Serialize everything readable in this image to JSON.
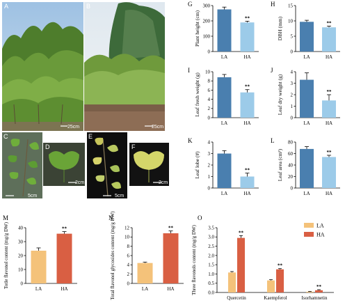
{
  "photos": [
    {
      "id": "photo-a",
      "letter": "A",
      "scale": "25cm",
      "scene": "dense-shrubs"
    },
    {
      "id": "photo-b",
      "letter": "B",
      "scale": "25cm",
      "scene": "shrubs-with-pine"
    },
    {
      "id": "photo-c",
      "letter": "C",
      "scale": "5cm",
      "scene": "leaf-branch-dark"
    },
    {
      "id": "photo-d",
      "letter": "D",
      "scale": "2cm",
      "scene": "single-leaf-dark"
    },
    {
      "id": "photo-e",
      "letter": "E",
      "scale": "5cm",
      "scene": "leaf-branch-black"
    },
    {
      "id": "photo-f",
      "letter": "F",
      "scale": "2cm",
      "scene": "single-leaf-black"
    }
  ],
  "colors": {
    "la_blue": "#4a7faf",
    "ha_lightblue": "#9ccbe9",
    "la_orange": "#f4c27a",
    "ha_red": "#d95f43",
    "sig": "#000000"
  },
  "chart_data": [
    {
      "id": "G",
      "type": "bar",
      "ylabel": "Plant height (cm)",
      "categories": [
        "LA",
        "HA"
      ],
      "values": [
        275,
        190
      ],
      "errors": [
        15,
        8
      ],
      "ylim": [
        0,
        300
      ],
      "yticks": [
        0,
        100,
        200,
        300
      ],
      "sig": [
        "",
        "**"
      ],
      "colors": [
        "#4a7faf",
        "#9ccbe9"
      ]
    },
    {
      "id": "H",
      "type": "bar",
      "ylabel": "DBH (mm)",
      "categories": [
        "LA",
        "HA"
      ],
      "values": [
        9.7,
        7.9
      ],
      "errors": [
        0.5,
        0.4
      ],
      "ylim": [
        0,
        15
      ],
      "yticks": [
        0,
        5,
        10,
        15
      ],
      "sig": [
        "",
        "**"
      ],
      "colors": [
        "#4a7faf",
        "#9ccbe9"
      ]
    },
    {
      "id": "I",
      "type": "bar",
      "ylabel": "Leaf fresh weight (g)",
      "categories": [
        "LA",
        "HA"
      ],
      "values": [
        8.8,
        5.5
      ],
      "errors": [
        0.6,
        0.6
      ],
      "ylim": [
        0,
        10
      ],
      "yticks": [
        0,
        2,
        4,
        6,
        8,
        10
      ],
      "sig": [
        "",
        "**"
      ],
      "colors": [
        "#4a7faf",
        "#9ccbe9"
      ]
    },
    {
      "id": "J",
      "type": "bar",
      "ylabel": "Leaf dry weight (g)",
      "categories": [
        "LA",
        "HA"
      ],
      "values": [
        3.3,
        1.5
      ],
      "errors": [
        0.6,
        0.5
      ],
      "ylim": [
        0,
        4
      ],
      "yticks": [
        0,
        1,
        2,
        3,
        4
      ],
      "sig": [
        "",
        "**"
      ],
      "colors": [
        "#4a7faf",
        "#9ccbe9"
      ]
    },
    {
      "id": "K",
      "type": "bar",
      "ylabel": "Leaf lobe (#)",
      "categories": [
        "LA",
        "HA"
      ],
      "values": [
        3.0,
        1.0
      ],
      "errors": [
        0.25,
        0.3
      ],
      "ylim": [
        0,
        4
      ],
      "yticks": [
        0,
        1,
        2,
        3,
        4
      ],
      "sig": [
        "",
        "**"
      ],
      "colors": [
        "#4a7faf",
        "#9ccbe9"
      ]
    },
    {
      "id": "L",
      "type": "bar",
      "ylabel": "Leaf area (cm²)",
      "categories": [
        "LA",
        "HA"
      ],
      "values": [
        68,
        54
      ],
      "errors": [
        4,
        3
      ],
      "ylim": [
        0,
        80
      ],
      "yticks": [
        0,
        20,
        40,
        60,
        80
      ],
      "sig": [
        "",
        "**"
      ],
      "colors": [
        "#4a7faf",
        "#9ccbe9"
      ]
    },
    {
      "id": "M",
      "type": "bar",
      "ylabel": "Totle flavonol content (mg/g DW)",
      "categories": [
        "LA",
        "HA"
      ],
      "values": [
        23.5,
        35.7
      ],
      "errors": [
        2.0,
        1.5
      ],
      "ylim": [
        0,
        40
      ],
      "yticks": [
        0,
        10,
        20,
        30,
        40
      ],
      "sig": [
        "",
        "**"
      ],
      "colors": [
        "#f4c27a",
        "#d95f43"
      ]
    },
    {
      "id": "N",
      "type": "bar",
      "ylabel": "Total flavonol glycosides content (mg/g DW)",
      "categories": [
        "LA",
        "HA"
      ],
      "values": [
        4.4,
        10.8
      ],
      "errors": [
        0.2,
        0.5
      ],
      "ylim": [
        0,
        12
      ],
      "yticks": [
        0,
        2,
        4,
        6,
        8,
        10,
        12
      ],
      "sig": [
        "",
        "**"
      ],
      "colors": [
        "#f4c27a",
        "#d95f43"
      ]
    },
    {
      "id": "O",
      "type": "bar",
      "ylabel": "Three flavonols content (mg/g DW)",
      "categories": [
        "Quercetin",
        "Kaempferol",
        "Isorhamnetin"
      ],
      "series": [
        {
          "name": "LA",
          "values": [
            1.08,
            0.65,
            0.04
          ],
          "errors": [
            0.05,
            0.04,
            0.02
          ],
          "color": "#f4c27a"
        },
        {
          "name": "HA",
          "values": [
            2.95,
            1.25,
            0.12
          ],
          "errors": [
            0.12,
            0.04,
            0.03
          ],
          "color": "#d95f43"
        }
      ],
      "ylim": [
        0,
        3.5
      ],
      "yticks": [
        0.0,
        0.5,
        1.0,
        1.5,
        2.0,
        2.5,
        3.0,
        3.5
      ],
      "sig": [
        "**",
        "**",
        "**"
      ],
      "legend_position": "top-right"
    }
  ]
}
